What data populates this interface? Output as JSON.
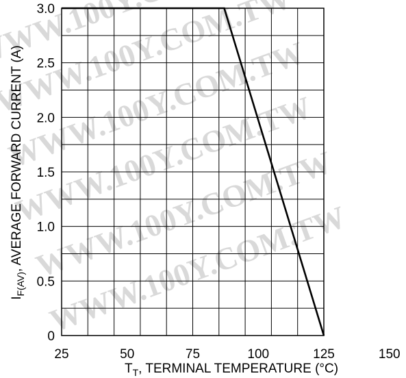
{
  "chart_data": {
    "type": "line",
    "x": [
      25,
      87,
      125
    ],
    "y": [
      3.0,
      3.0,
      0
    ],
    "xlim": [
      25,
      150
    ],
    "ylim": [
      0,
      3.0
    ],
    "x_ticks": [
      "25",
      "50",
      "75",
      "100",
      "125",
      "150"
    ],
    "y_ticks": [
      "0",
      "0.5",
      "1.0",
      "1.5",
      "2.0",
      "2.5",
      "3.0"
    ],
    "xlabel": {
      "prefix": "T",
      "subscript": "T",
      "text": ",  TERMINAL TEMPERATURE (°C)"
    },
    "ylabel": {
      "prefix": "I",
      "subscript": "F(AV)",
      "text": ",  AVERAGE FORWARD CURRENT (A)"
    },
    "grid": true,
    "legend": "none",
    "line_color": "#000000",
    "grid_color": "#000000",
    "watermark_text": "WWW.100Y.COM.TW"
  }
}
